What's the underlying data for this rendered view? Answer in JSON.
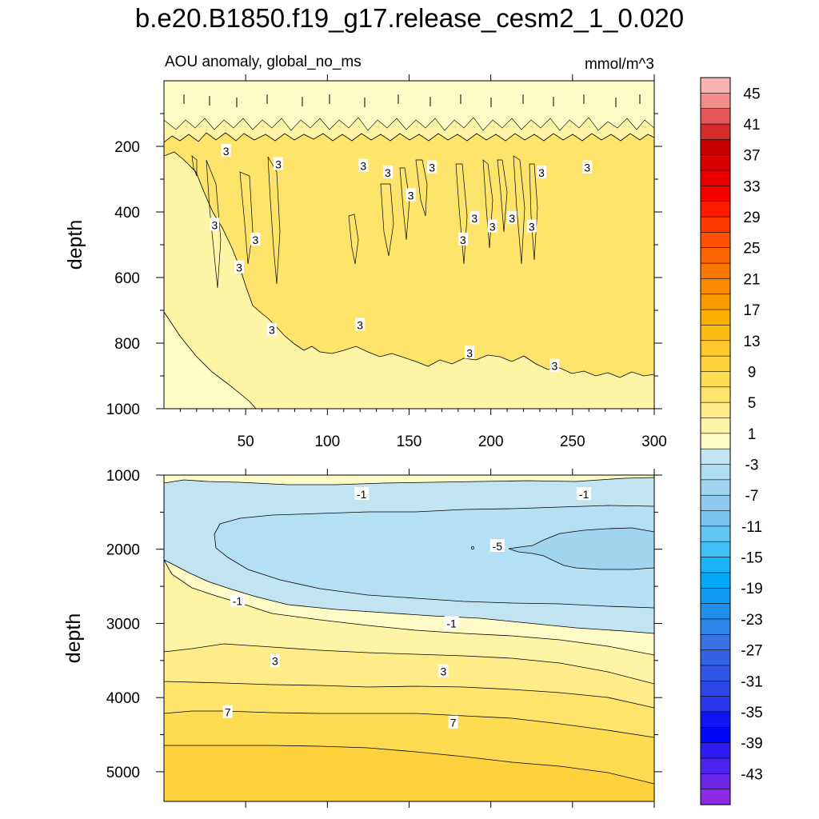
{
  "title": "b.e20.B1850.f19_g17.release_cesm2_1_0.020",
  "chart_data": [
    {
      "type": "heatmap",
      "subtype": "filled-contour",
      "panel": "upper",
      "subtitle_left": "AOU anomaly, global_no_ms",
      "units": "mmol/m^3",
      "xlabel": "",
      "ylabel": "depth",
      "xlim": [
        0,
        300
      ],
      "ylim": [
        1000,
        0
      ],
      "x_ticks": [
        50,
        100,
        150,
        200,
        250,
        300
      ],
      "y_ticks": [
        200,
        400,
        600,
        800,
        1000
      ],
      "contour_labels": [
        {
          "text": "3",
          "x": 38,
          "y": 215
        },
        {
          "text": "3",
          "x": 70,
          "y": 255
        },
        {
          "text": "3",
          "x": 122,
          "y": 260
        },
        {
          "text": "3",
          "x": 137,
          "y": 280
        },
        {
          "text": "3",
          "x": 164,
          "y": 265
        },
        {
          "text": "3",
          "x": 231,
          "y": 280
        },
        {
          "text": "3",
          "x": 259,
          "y": 265
        },
        {
          "text": "3",
          "x": 151,
          "y": 350
        },
        {
          "text": "3",
          "x": 190,
          "y": 420
        },
        {
          "text": "3",
          "x": 213,
          "y": 420
        },
        {
          "text": "3",
          "x": 31,
          "y": 440
        },
        {
          "text": "3",
          "x": 201,
          "y": 445
        },
        {
          "text": "3",
          "x": 225,
          "y": 445
        },
        {
          "text": "3",
          "x": 56,
          "y": 485
        },
        {
          "text": "3",
          "x": 183,
          "y": 485
        },
        {
          "text": "3",
          "x": 46,
          "y": 570
        },
        {
          "text": "3",
          "x": 66,
          "y": 760
        },
        {
          "text": "3",
          "x": 120,
          "y": 745
        },
        {
          "text": "3",
          "x": 187,
          "y": 830
        },
        {
          "text": "3",
          "x": 239,
          "y": 870
        }
      ]
    },
    {
      "type": "heatmap",
      "subtype": "filled-contour",
      "panel": "lower",
      "xlabel": "",
      "ylabel": "depth",
      "xlim": [
        0,
        300
      ],
      "ylim": [
        5400,
        1000
      ],
      "y_ticks": [
        1000,
        2000,
        3000,
        4000,
        5000
      ],
      "contour_labels": [
        {
          "text": "-1",
          "x": 121,
          "y": 1260
        },
        {
          "text": "-1",
          "x": 257,
          "y": 1260
        },
        {
          "text": "-5",
          "x": 204,
          "y": 1960
        },
        {
          "text": "-1",
          "x": 45,
          "y": 2700
        },
        {
          "text": "-1",
          "x": 176,
          "y": 3000
        },
        {
          "text": "3",
          "x": 68,
          "y": 3510
        },
        {
          "text": "3",
          "x": 171,
          "y": 3650
        },
        {
          "text": "7",
          "x": 39,
          "y": 4200
        },
        {
          "text": "7",
          "x": 177,
          "y": 4340
        }
      ]
    }
  ],
  "colorbar": {
    "levels_shown": [
      "45",
      "41",
      "37",
      "33",
      "29",
      "25",
      "21",
      "17",
      "13",
      "9",
      "5",
      "1",
      "-3",
      "-7",
      "-11",
      "-15",
      "-19",
      "-23",
      "-27",
      "-31",
      "-35",
      "-39",
      "-43"
    ],
    "colors_top_to_bottom": [
      "#f8b4b4",
      "#f08c8c",
      "#e45858",
      "#d62b2b",
      "#c80000",
      "#d80000",
      "#e80000",
      "#f80000",
      "#ff1a00",
      "#ff3a00",
      "#ff5200",
      "#fc6400",
      "#fa7800",
      "#fa8a00",
      "#fa9c00",
      "#fbad00",
      "#fcbc14",
      "#fdc82a",
      "#fdd23d",
      "#fedc52",
      "#fee46a",
      "#feec88",
      "#fef4a6",
      "#fffbc6",
      "#c2e4f2",
      "#b0dcf0",
      "#a0d4ef",
      "#8ecaf0",
      "#7ac2f0",
      "#62c6f4",
      "#40c0f6",
      "#18b4f8",
      "#00aaf8",
      "#109cf4",
      "#2090ec",
      "#2a86ea",
      "#3c72e6",
      "#3462e4",
      "#3056e6",
      "#2c46e8",
      "#2a38ec",
      "#0e16f4",
      "#0008f8",
      "#2e1cf6",
      "#4c22ee",
      "#6a26e8",
      "#8a2ae6"
    ]
  }
}
